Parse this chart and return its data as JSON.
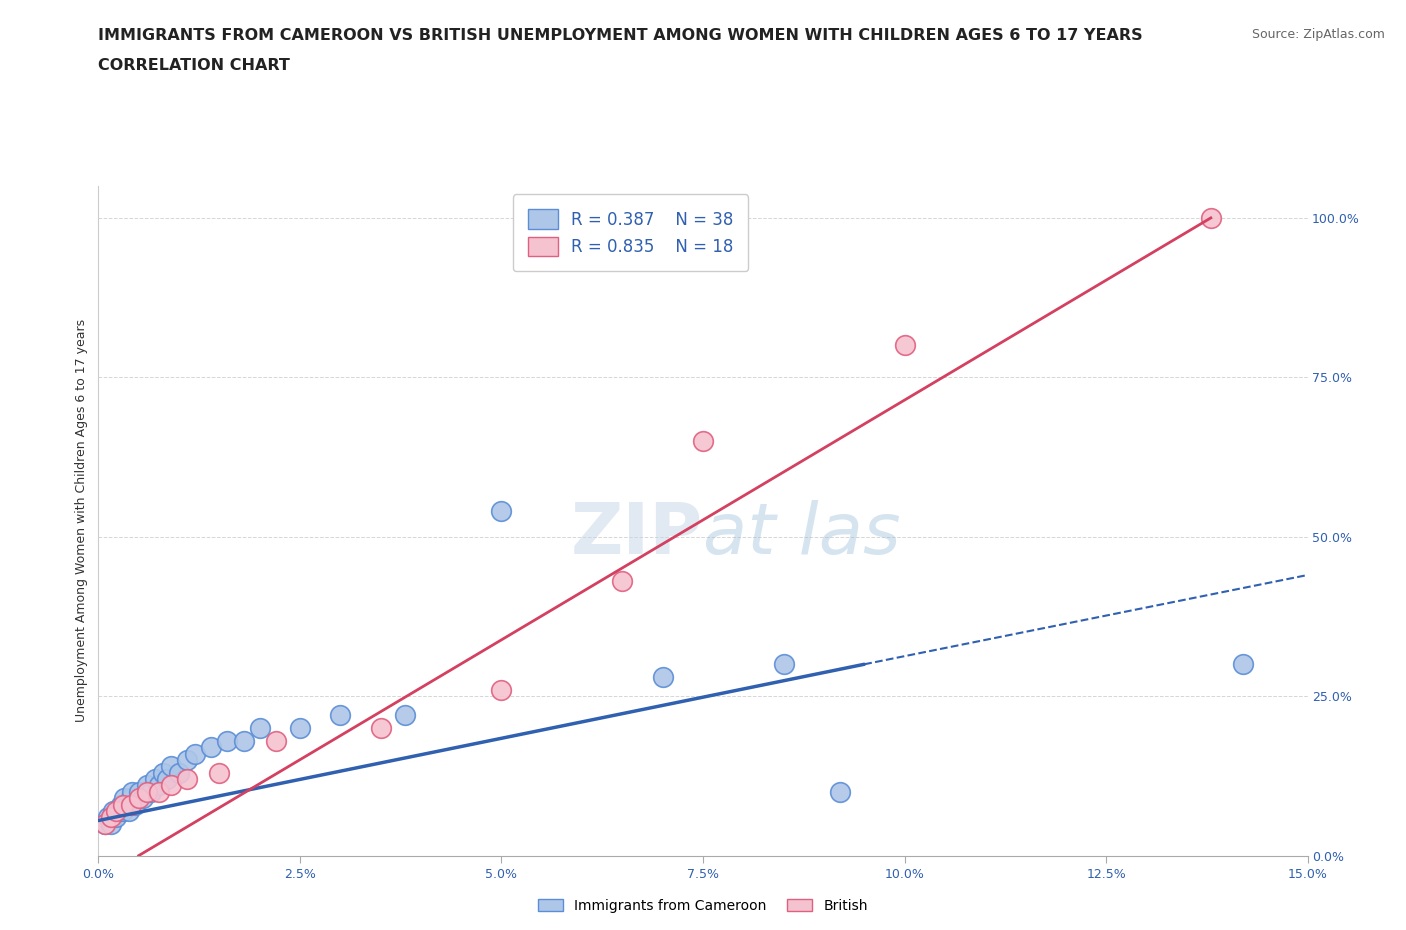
{
  "title": "IMMIGRANTS FROM CAMEROON VS BRITISH UNEMPLOYMENT AMONG WOMEN WITH CHILDREN AGES 6 TO 17 YEARS",
  "subtitle": "CORRELATION CHART",
  "source": "Source: ZipAtlas.com",
  "xlabel_ticks": [
    "0.0%",
    "2.5%",
    "5.0%",
    "7.5%",
    "10.0%",
    "12.5%",
    "15.0%"
  ],
  "ylabel_ticks": [
    "0.0%",
    "25.0%",
    "50.0%",
    "75.0%",
    "100.0%"
  ],
  "xlim": [
    0.0,
    15.0
  ],
  "ylim": [
    0.0,
    105.0
  ],
  "watermark_text": "ZIPat las",
  "blue_series_label": "Immigrants from Cameroon",
  "pink_series_label": "British",
  "blue_R": "0.387",
  "blue_N": "38",
  "pink_R": "0.835",
  "pink_N": "18",
  "blue_fill_color": "#aec6e8",
  "pink_fill_color": "#f5c2d0",
  "blue_edge_color": "#5b8ed6",
  "pink_edge_color": "#e06080",
  "blue_line_color": "#3060b0",
  "pink_line_color": "#d44060",
  "blue_scatter_x": [
    0.08,
    0.12,
    0.15,
    0.18,
    0.22,
    0.25,
    0.28,
    0.3,
    0.32,
    0.35,
    0.38,
    0.4,
    0.42,
    0.45,
    0.5,
    0.55,
    0.6,
    0.65,
    0.7,
    0.75,
    0.8,
    0.85,
    0.9,
    1.0,
    1.1,
    1.2,
    1.4,
    1.6,
    1.8,
    2.0,
    2.5,
    3.0,
    3.8,
    5.0,
    7.0,
    8.5,
    9.2,
    14.2
  ],
  "blue_scatter_y": [
    5,
    6,
    5,
    7,
    6,
    7,
    8,
    7,
    9,
    8,
    7,
    9,
    10,
    8,
    10,
    9,
    11,
    10,
    12,
    11,
    13,
    12,
    14,
    13,
    15,
    16,
    17,
    18,
    18,
    20,
    20,
    22,
    22,
    54,
    28,
    30,
    10,
    30
  ],
  "pink_scatter_x": [
    0.08,
    0.15,
    0.22,
    0.3,
    0.4,
    0.5,
    0.6,
    0.75,
    0.9,
    1.1,
    1.5,
    2.2,
    3.5,
    5.0,
    6.5,
    7.5,
    10.0,
    13.8
  ],
  "pink_scatter_y": [
    5,
    6,
    7,
    8,
    8,
    9,
    10,
    10,
    11,
    12,
    13,
    18,
    20,
    26,
    43,
    65,
    80,
    100
  ],
  "blue_trend_x1": 0.0,
  "blue_trend_y1": 5.5,
  "blue_trend_x2": 9.5,
  "blue_trend_y2": 30.0,
  "blue_dash_x1": 9.5,
  "blue_dash_y1": 30.0,
  "blue_dash_x2": 15.0,
  "blue_dash_y2": 44.0,
  "pink_trend_x1": 0.5,
  "pink_trend_y1": 0.0,
  "pink_trend_x2": 13.8,
  "pink_trend_y2": 100.0,
  "title_fontsize": 11.5,
  "subtitle_fontsize": 11.5,
  "axis_label_fontsize": 9,
  "tick_fontsize": 9,
  "legend_fontsize": 12,
  "source_fontsize": 9
}
